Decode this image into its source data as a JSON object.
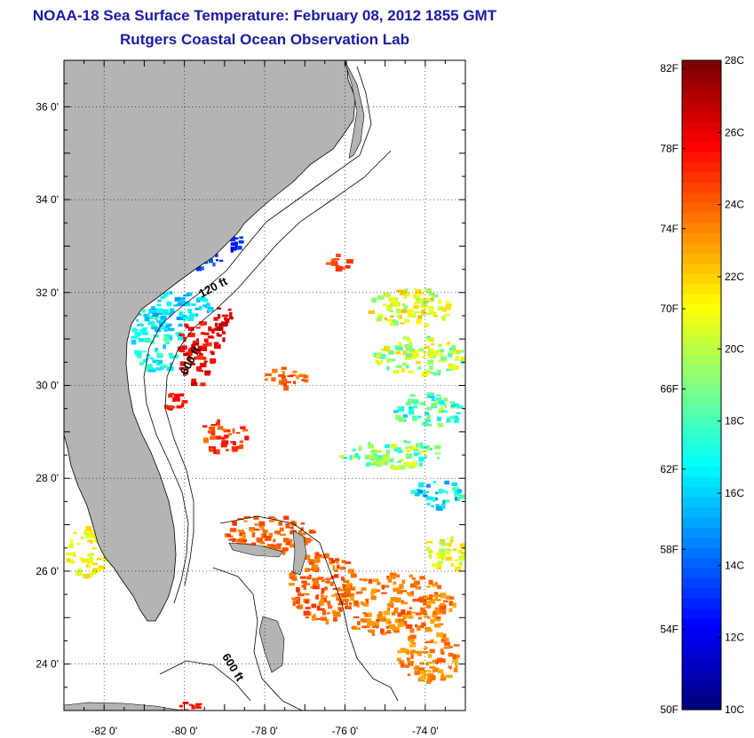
{
  "title": "NOAA-18 Sea Surface Temperature:  February 08, 2012 1855 GMT",
  "subtitle": "Rutgers Coastal Ocean Observation Lab",
  "map": {
    "lon_range": [
      -83,
      -73
    ],
    "lat_range": [
      23,
      37
    ],
    "lon_ticks": [
      {
        "value": -82,
        "label": "-82 0'"
      },
      {
        "value": -80,
        "label": "-80 0'"
      },
      {
        "value": -78,
        "label": "-78 0'"
      },
      {
        "value": -76,
        "label": "-76 0'"
      },
      {
        "value": -74,
        "label": "-74 0'"
      }
    ],
    "lat_ticks": [
      {
        "value": 36,
        "label": "36 0'"
      },
      {
        "value": 34,
        "label": "34 0'"
      },
      {
        "value": 32,
        "label": "32 0'"
      },
      {
        "value": 30,
        "label": "30 0'"
      },
      {
        "value": 28,
        "label": "28 0'"
      },
      {
        "value": 26,
        "label": "26 0'"
      },
      {
        "value": 24,
        "label": "24 0'"
      }
    ],
    "grid": "dotted",
    "land_color": "#b4b4b4",
    "contour_labels": [
      "120 ft",
      "600 ft",
      "600 ft"
    ]
  },
  "colorbar": {
    "min_c": 10,
    "max_c": 28,
    "celsius_labels": [
      "28C",
      "26C",
      "24C",
      "22C",
      "20C",
      "18C",
      "16C",
      "14C",
      "12C",
      "10C"
    ],
    "fahrenheit_labels": [
      "82F",
      "78F",
      "74F",
      "70F",
      "66F",
      "62F",
      "58F",
      "54F",
      "50F"
    ],
    "colormap": "jet"
  }
}
